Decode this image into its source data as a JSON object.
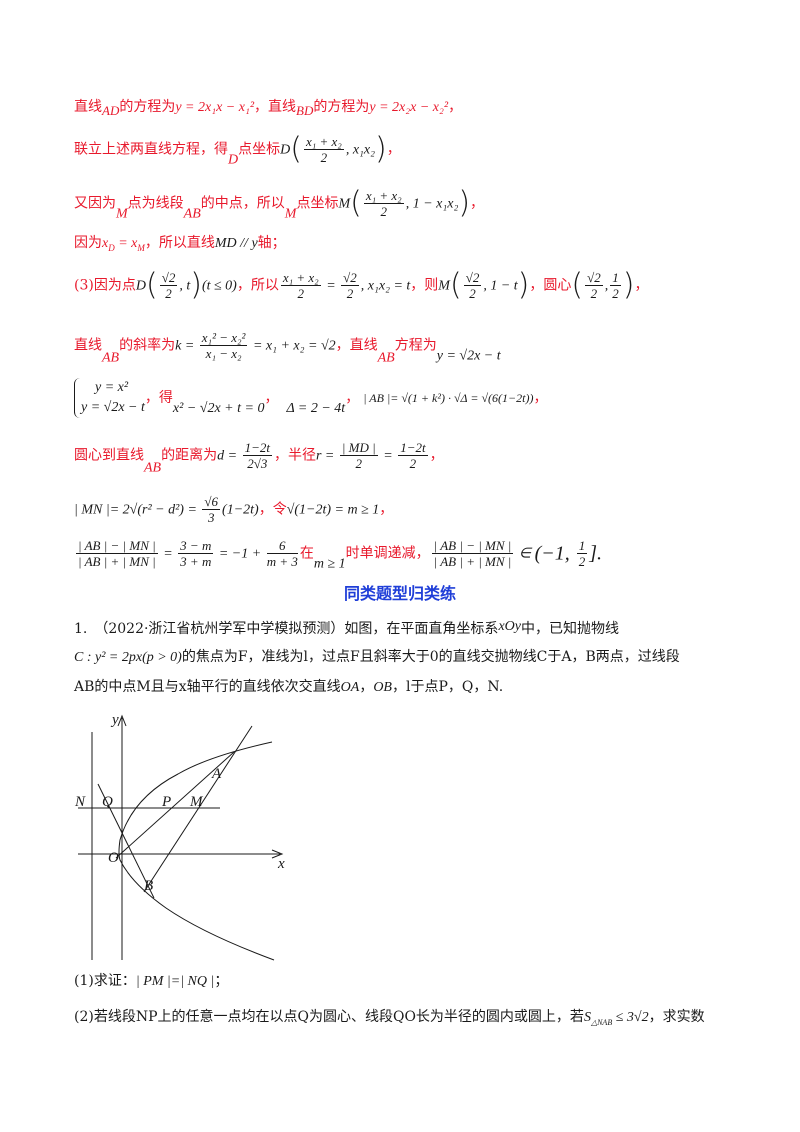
{
  "lines": {
    "l1": {
      "a": "直线",
      "b": "AD",
      "c": "的方程为",
      "eq1": "y = 2x₁x − x₁²",
      "d": "，直线",
      "e": "BD",
      "f": "的方程为",
      "eq2": "y = 2x₂x − x₂²",
      "g": "，"
    },
    "l2": {
      "a": "联立上述两直线方程，得",
      "b": "D",
      "c": "点坐标",
      "d": "D",
      "num": "x₁ + x₂",
      "den": "2",
      "e": ", x₁x₂",
      "f": "，"
    },
    "l3": {
      "a": "又因为",
      "b": "M",
      "c": "点为线段",
      "d": "AB",
      "e": "的中点，所以",
      "f": "M",
      "g": "点坐标",
      "h": "M",
      "num": "x₁ + x₂",
      "den": "2",
      "i": ", 1 − x₁x₂",
      "j": "，"
    },
    "l4": {
      "a": "因为",
      "b": "x",
      "c": "D",
      "d": " = x",
      "e": "M",
      "f": "，所以直线",
      "g": "MD // y",
      "h": "轴；"
    },
    "l5": {
      "a": "(3)因为点",
      "b": "D",
      "num1": "√2",
      "den1": "2",
      "c": ", t",
      "d": "(t ≤ 0)",
      "e": "，所以",
      "num2": "x₁ + x₂",
      "den2": "2",
      "f": " = ",
      "num3": "√2",
      "den3": "2",
      "g": ", x₁x₂ = t",
      "h": "，则",
      "i": "M",
      "num4": "√2",
      "den4": "2",
      "j": ", 1 − t",
      "k": "，圆心",
      "num5": "√2",
      "den5": "2",
      "l": ",",
      "num6": "1",
      "den6": "2",
      "m": "，"
    },
    "l6": {
      "a": "直线",
      "b": "AB",
      "c": "的斜率为",
      "d": "k = ",
      "num1": "x₁² − x₂²",
      "den1": "x₁ − x₂",
      "e": " = x₁ + x₂ = √2",
      "f": "，直线",
      "g": "AB",
      "h": "方程为",
      "i": "y = √2x − t"
    },
    "l7": {
      "s1": "y = x²",
      "s2": "y = √2x − t",
      "a": "，得",
      "b": "x² − √2x + t = 0",
      "c": "，",
      "d": "Δ = 2 − 4t",
      "e": "，",
      "f": "| AB |= √(1 + k²) · √Δ = √(6(1−2t))",
      "g": "，"
    },
    "l8": {
      "a": "圆心到直线",
      "b": "AB",
      "c": "的距离为",
      "d": "d = ",
      "num1": "1−2t",
      "den1": "2√3",
      "e": "，半径",
      "f": "r = ",
      "num2": "| MD |",
      "den2": "2",
      "g": " = ",
      "num3": "1−2t",
      "den3": "2",
      "h": "，"
    },
    "l9": {
      "a": "| MN |= 2√(r² − d²) = ",
      "num": "√6",
      "den": "3",
      "b": "(1−2t)",
      "c": "，令",
      "d": "√(1−2t) = m ≥ 1",
      "e": "，"
    },
    "l10": {
      "num1": "| AB | − | MN |",
      "den1": "| AB | + | MN |",
      "a": " = ",
      "num2": "3 − m",
      "den2": "3 + m",
      "b": " = −1 + ",
      "num3": "6",
      "den3": "m + 3",
      "c": "在",
      "d": "m ≥ 1",
      "e": "时单调递减，",
      "num4": "| AB | − | MN |",
      "den4": "| AB | + | MN |",
      "f": " ∈ ",
      "g": "(−1, ",
      "num5": "1",
      "den5": "2",
      "h": "].",
      "i": ""
    }
  },
  "heading": "同类题型归类练",
  "problem": {
    "p1": "1.　（2022·浙江省杭州学军中学模拟预测）如图，在平面直角坐标系",
    "p1b": "xOy",
    "p1c": "中，已知抛物线",
    "p2": "C : y² = 2px(p > 0)",
    "p2b": "的焦点为F，准线为l，过点F且斜率大于0的直线交抛物线C于A，B两点，过线段",
    "p3": "AB的中点M且与x轴平行的直线依次交直线",
    "p3b": "OA",
    "p3c": "，",
    "p3d": "OB",
    "p3e": "，l于点P，Q，N.",
    "q1a": "(1)求证：",
    "q1b": "| PM |=| NQ |",
    "q1c": "；",
    "q2a": "(2)若线段NP上的任意一点均在以点Q为圆心、线段QO长为半径的圆内或圆上，若",
    "q2b": "S",
    "q2c": "△NAB",
    "q2d": " ≤ 3√2",
    "q2e": "，求实数"
  },
  "figure_labels": {
    "y": "y",
    "x": "x",
    "N": "N",
    "Q": "Q",
    "P": "P",
    "M": "M",
    "A": "A",
    "O": "O",
    "B": "B"
  }
}
